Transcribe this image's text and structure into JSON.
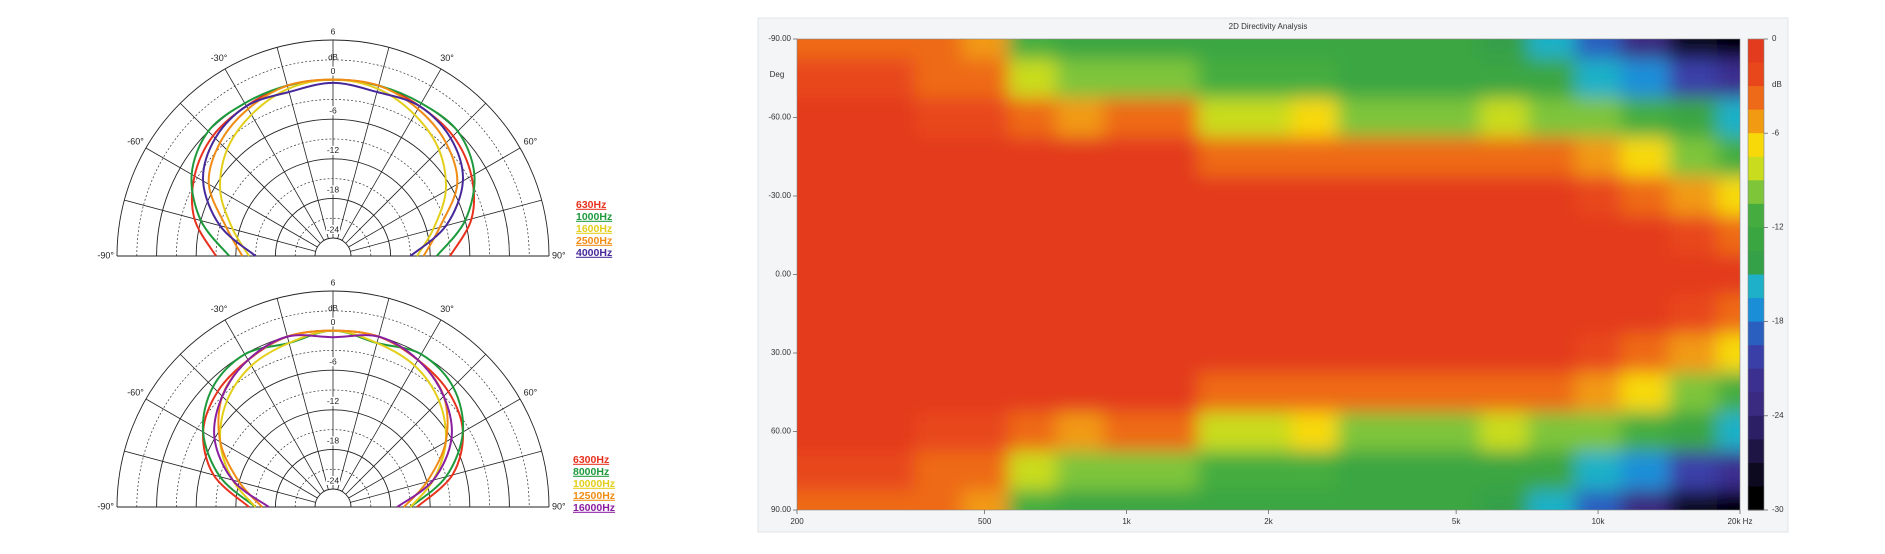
{
  "chart_data": [
    {
      "type": "polar",
      "r_label": "dB",
      "rlim": [
        -24,
        6
      ],
      "rticks": [
        6,
        0,
        -6,
        -12,
        -18,
        -24
      ],
      "rminor": [
        3,
        -3,
        -9,
        -15,
        -21
      ],
      "theta": [
        -90,
        -75,
        -60,
        -45,
        -30,
        -15,
        0,
        15,
        30,
        45,
        60,
        75,
        90
      ],
      "thetaticks": [
        {
          "value": -90,
          "label": "-90°"
        },
        {
          "value": -60,
          "label": "-60°"
        },
        {
          "value": -30,
          "label": "-30°"
        },
        {
          "value": 30,
          "label": "30°"
        },
        {
          "value": 60,
          "label": "60°"
        },
        {
          "value": 90,
          "label": "90°"
        }
      ],
      "series": [
        {
          "name": "630Hz",
          "color": "#e8321e",
          "values": [
            -9,
            -5,
            -2.5,
            -1,
            -0.5,
            0,
            0,
            0,
            -0.5,
            -1,
            -2.5,
            -5,
            -9
          ]
        },
        {
          "name": "1000Hz",
          "color": "#1e9a3c",
          "values": [
            -11,
            -6,
            -2,
            0,
            0,
            0,
            0,
            0,
            0,
            0,
            -2,
            -6,
            -11
          ]
        },
        {
          "name": "1600Hz",
          "color": "#e3cf1a",
          "values": [
            -14,
            -11,
            -7,
            -4,
            -2,
            -0.5,
            0,
            -0.5,
            -2,
            -4,
            -7,
            -11,
            -14
          ]
        },
        {
          "name": "2500Hz",
          "color": "#f08c14",
          "values": [
            -13,
            -10,
            -5,
            -2.5,
            -1,
            0,
            0,
            0,
            -1,
            -2.5,
            -5,
            -10,
            -13
          ]
        },
        {
          "name": "4000Hz",
          "color": "#46289a",
          "values": [
            -15,
            -9,
            -4,
            -1.5,
            -0.5,
            -1,
            -0.5,
            -1,
            -0.5,
            -1.5,
            -4,
            -9,
            -15
          ]
        }
      ]
    },
    {
      "type": "polar",
      "r_label": "dB",
      "rlim": [
        -24,
        6
      ],
      "rticks": [
        6,
        0,
        -6,
        -12,
        -18,
        -24
      ],
      "rminor": [
        3,
        -3,
        -9,
        -15,
        -21
      ],
      "theta": [
        -90,
        -75,
        -60,
        -45,
        -30,
        -15,
        0,
        15,
        30,
        45,
        60,
        75,
        90
      ],
      "thetaticks": [
        {
          "value": -90,
          "label": "-90°"
        },
        {
          "value": -60,
          "label": "-60°"
        },
        {
          "value": -30,
          "label": "-30°"
        },
        {
          "value": 30,
          "label": "30°"
        },
        {
          "value": 60,
          "label": "60°"
        },
        {
          "value": 90,
          "label": "90°"
        }
      ],
      "series": [
        {
          "name": "6300Hz",
          "color": "#e8321e",
          "values": [
            -14,
            -8,
            -4,
            -2,
            -1,
            0,
            0,
            0,
            -1,
            -2,
            -4,
            -8,
            -14
          ]
        },
        {
          "name": "8000Hz",
          "color": "#1e9a3c",
          "values": [
            -15,
            -9,
            -4,
            -1,
            0,
            -1,
            0,
            -1,
            0,
            -1,
            -4,
            -9,
            -15
          ]
        },
        {
          "name": "10000Hz",
          "color": "#e3cf1a",
          "values": [
            -15,
            -11,
            -7,
            -4,
            -2,
            -1,
            0,
            -1,
            -2,
            -4,
            -7,
            -11,
            -15
          ]
        },
        {
          "name": "12500Hz",
          "color": "#f08c14",
          "values": [
            -16,
            -12,
            -7,
            -3,
            -1,
            0,
            0,
            0,
            -1,
            -3,
            -7,
            -12,
            -16
          ]
        },
        {
          "name": "16000Hz",
          "color": "#8a1ea0",
          "values": [
            -17,
            -11,
            -6,
            -3,
            -1,
            0,
            -1,
            0,
            -1,
            -3,
            -6,
            -11,
            -17
          ]
        }
      ]
    },
    {
      "type": "heatmap",
      "title": "2D Directivity Analysis",
      "ylabel": "Deg",
      "x": [
        200,
        250,
        315,
        400,
        500,
        630,
        800,
        1000,
        1250,
        1600,
        2000,
        2500,
        3150,
        4000,
        5000,
        6300,
        8000,
        10000,
        12500,
        16000,
        20000
      ],
      "y": [
        -90,
        -75,
        -60,
        -45,
        -30,
        -15,
        0,
        15,
        30,
        45,
        60,
        75,
        90
      ],
      "z": [
        [
          -3,
          -3,
          -3.5,
          -4,
          -5,
          -11,
          -12,
          -12,
          -12,
          -12,
          -12,
          -12,
          -13,
          -13,
          -13,
          -14,
          -16,
          -19,
          -23,
          -27,
          -29
        ],
        [
          -2,
          -2,
          -2.5,
          -3,
          -3.5,
          -8,
          -10,
          -9,
          -10,
          -11,
          -11,
          -11,
          -12,
          -12,
          -12,
          -12,
          -13,
          -15,
          -17,
          -20,
          -22
        ],
        [
          -1,
          -1,
          -1,
          -1.5,
          -2,
          -3,
          -5,
          -3,
          -4,
          -8,
          -8,
          -7,
          -9,
          -9,
          -9,
          -8,
          -9,
          -10,
          -11,
          -13,
          -15
        ],
        [
          -0.5,
          -0.5,
          -0.5,
          -0.5,
          -1,
          -1,
          -1,
          -0.5,
          -1,
          -4,
          -3,
          -3,
          -4,
          -4,
          -4,
          -3.5,
          -3.5,
          -5,
          -7,
          -9,
          -11
        ],
        [
          0,
          0,
          0,
          0,
          0,
          0,
          0,
          0,
          0,
          -1,
          -0.5,
          -0.5,
          -1,
          -1,
          -1,
          -1,
          -1,
          -1.5,
          -3,
          -5,
          -7
        ],
        [
          0,
          0,
          0,
          0,
          0,
          0,
          0,
          0,
          0,
          0,
          0,
          0,
          0,
          0,
          0,
          0,
          0,
          0,
          -1,
          -2,
          -3
        ],
        [
          0,
          0,
          0,
          0,
          0,
          0,
          0,
          0,
          0,
          0,
          0,
          0,
          0,
          0,
          0,
          0,
          0,
          0,
          0,
          0,
          0
        ],
        [
          0,
          0,
          0,
          0,
          0,
          0,
          0,
          0,
          0,
          0,
          0,
          0,
          0,
          0,
          0,
          0,
          0,
          0,
          -1,
          -2,
          -3
        ],
        [
          0,
          0,
          0,
          0,
          0,
          0,
          0,
          0,
          0,
          -1,
          -0.5,
          -0.5,
          -1,
          -1,
          -1,
          -1,
          -1,
          -1.5,
          -3,
          -5,
          -7
        ],
        [
          -0.5,
          -0.5,
          -0.5,
          -0.5,
          -1,
          -1,
          -1,
          -0.5,
          -1,
          -4,
          -3,
          -3,
          -4,
          -4,
          -4,
          -3.5,
          -3.5,
          -5,
          -7,
          -9,
          -11
        ],
        [
          -1,
          -1,
          -1,
          -1.5,
          -2,
          -3,
          -5,
          -3,
          -4,
          -8,
          -8,
          -7,
          -9,
          -9,
          -9,
          -8,
          -9,
          -10,
          -11,
          -13,
          -15
        ],
        [
          -2,
          -2,
          -2.5,
          -3,
          -3.5,
          -8,
          -10,
          -9,
          -10,
          -11,
          -11,
          -11,
          -12,
          -12,
          -12,
          -12,
          -13,
          -15,
          -17,
          -20,
          -22
        ],
        [
          -3,
          -3,
          -3.5,
          -4,
          -5,
          -11,
          -12,
          -12,
          -12,
          -12,
          -12,
          -12,
          -13,
          -13,
          -13,
          -14,
          -16,
          -19,
          -23,
          -27,
          -29
        ]
      ],
      "xlim": [
        200,
        20000
      ],
      "xlog": true,
      "xticks": [
        200,
        500,
        {
          "value": 1000,
          "label": "1k"
        },
        {
          "value": 2000,
          "label": "2k"
        },
        {
          "value": 5000,
          "label": "5k"
        },
        {
          "value": 10000,
          "label": "10k"
        },
        {
          "value": 20000,
          "label": "20k Hz"
        }
      ],
      "ylim": [
        -90,
        90
      ],
      "y_inverted": true,
      "yticks": [
        {
          "value": -90,
          "label": "-90.00"
        },
        {
          "value": -60,
          "label": "-60.00"
        },
        {
          "value": -30,
          "label": "-30.00"
        },
        {
          "value": 0,
          "label": "0.00"
        },
        {
          "value": 30,
          "label": "30.00"
        },
        {
          "value": 60,
          "label": "60.00"
        },
        {
          "value": 90,
          "label": "90.00"
        }
      ],
      "colorbar": {
        "label": "dB",
        "lim": [
          0,
          -30
        ],
        "ticks": [
          0,
          -6,
          -12,
          -18,
          -24,
          -30
        ],
        "colors": [
          "#e33b1d",
          "#e8461b",
          "#ee6a18",
          "#f29a12",
          "#f7d90a",
          "#c9dc1e",
          "#7ec53a",
          "#45ad3f",
          "#3aa642",
          "#34a048",
          "#1eb0c8",
          "#1a8fd8",
          "#2b5fbf",
          "#3a3fa8",
          "#3b2f8f",
          "#3a2a80",
          "#2d1f66",
          "#1e1545",
          "#0d0a20",
          "#000000"
        ]
      }
    }
  ]
}
